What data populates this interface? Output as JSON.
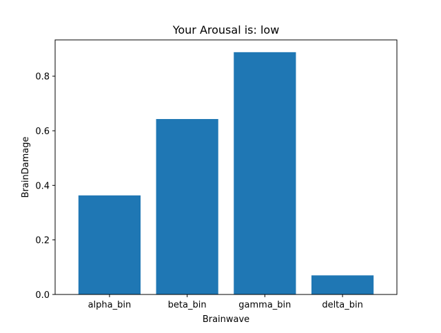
{
  "chart_data": {
    "type": "bar",
    "title": "Your Arousal is: low",
    "xlabel": "Brainwave",
    "ylabel": "BrainDamage",
    "categories": [
      "alpha_bin",
      "beta_bin",
      "gamma_bin",
      "delta_bin"
    ],
    "values": [
      0.363,
      0.643,
      0.888,
      0.07
    ],
    "ylim": [
      0,
      0.933
    ],
    "yticks": [
      {
        "value": 0.0,
        "label": "0.0"
      },
      {
        "value": 0.2,
        "label": "0.2"
      },
      {
        "value": 0.4,
        "label": "0.4"
      },
      {
        "value": 0.6,
        "label": "0.6"
      },
      {
        "value": 0.8,
        "label": "0.8"
      }
    ],
    "bar_color": "#1f77b4",
    "grid": false,
    "legend": "none"
  }
}
